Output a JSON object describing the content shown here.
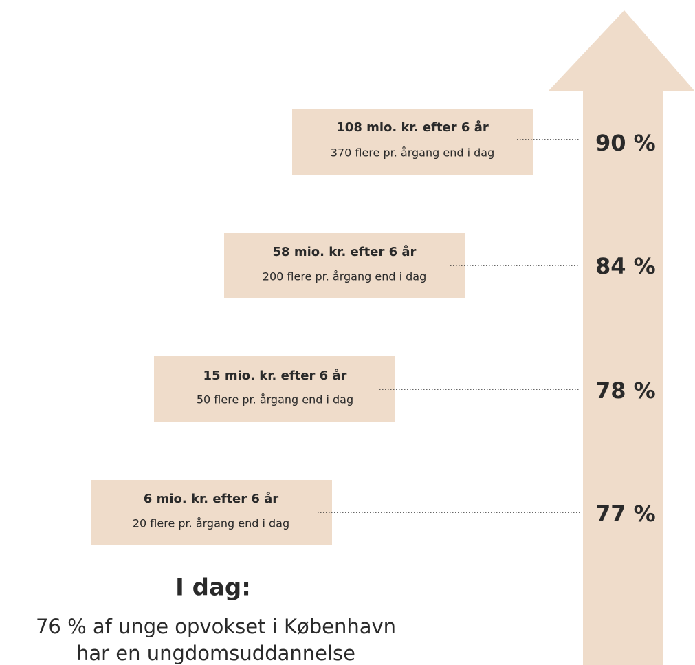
{
  "levels": [
    {
      "title": "108 mio. kr. efter 6 år",
      "subtitle": "370 flere pr. årgang end i dag",
      "percent": "90 %"
    },
    {
      "title": "58 mio. kr. efter 6 år",
      "subtitle": "200 flere pr. årgang end i dag",
      "percent": "84 %"
    },
    {
      "title": "15 mio. kr. efter 6 år",
      "subtitle": "50 flere pr. årgang end i dag",
      "percent": "78 %"
    },
    {
      "title": "6 mio. kr. efter 6 år",
      "subtitle": "20 flere pr. årgang end i dag",
      "percent": "77 %"
    }
  ],
  "today": {
    "heading": "I dag:",
    "lines": [
      "76 % af unge opvokset i København",
      "har en ungdomsuddannelse"
    ]
  }
}
